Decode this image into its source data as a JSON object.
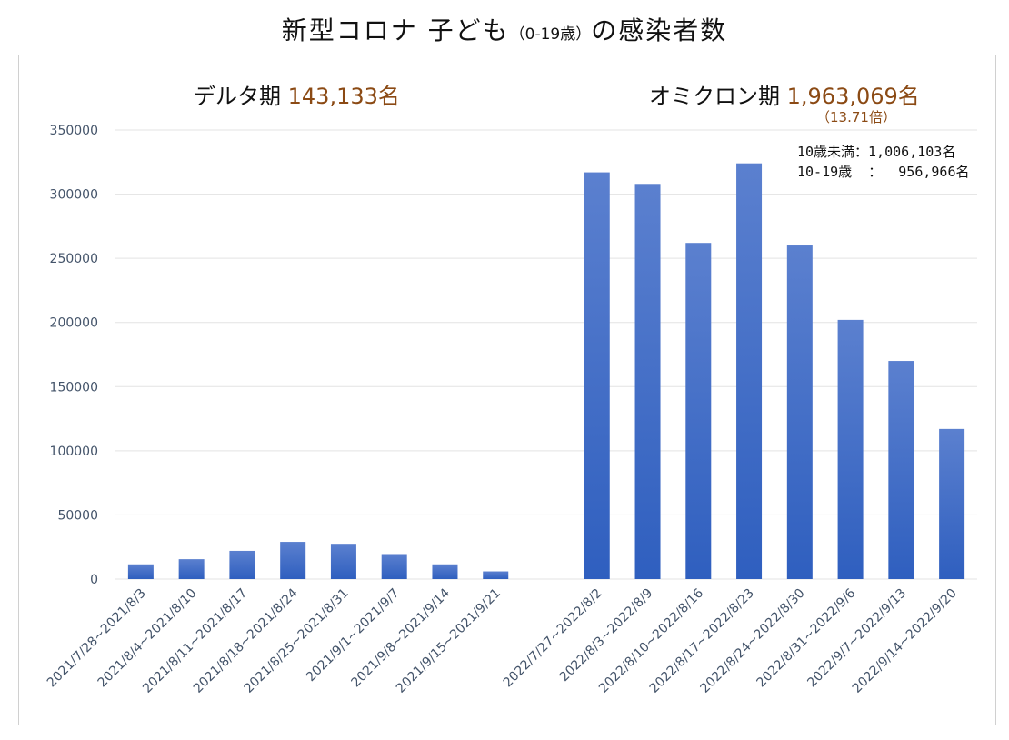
{
  "title": {
    "main": "新型コロナ 子ども",
    "sub": "（0-19歳）",
    "tail": "の感染者数"
  },
  "annotations": {
    "delta_label": "デルタ期 ",
    "delta_total": "143,133名",
    "omicron_label": "オミクロン期 ",
    "omicron_total": "1,963,069名",
    "omicron_ratio": "（13.71倍）",
    "under10_line": "10歳未満：1,006,103名",
    "age10_19_line": "10-19歳  ：  956,966名"
  },
  "colors": {
    "bar_top": "#5b80cf",
    "bar_bottom": "#2f5fbf",
    "grid": "#e3e3e3",
    "axis_text": "#44546a",
    "accent": "#8b4a14"
  },
  "chart_data": {
    "type": "bar",
    "categories": [
      "2021/7/28~2021/8/3",
      "2021/8/4~2021/8/10",
      "2021/8/11~2021/8/17",
      "2021/8/18~2021/8/24",
      "2021/8/25~2021/8/31",
      "2021/9/1~2021/9/7",
      "2021/9/8~2021/9/14",
      "2021/9/15~2021/9/21",
      "",
      "2022/7/27~2022/8/2",
      "2022/8/3~2022/8/9",
      "2022/8/10~2022/8/16",
      "2022/8/17~2022/8/23",
      "2022/8/24~2022/8/30",
      "2022/8/31~2022/9/6",
      "2022/9/7~2022/9/13",
      "2022/9/14~2022/9/20"
    ],
    "values": [
      11500,
      15500,
      22000,
      29000,
      27500,
      19500,
      11500,
      6000,
      null,
      317000,
      308000,
      262000,
      324000,
      260000,
      202000,
      170000,
      117000
    ],
    "ylim": [
      0,
      350000
    ],
    "yticks": [
      "0",
      "50000",
      "100000",
      "150000",
      "200000",
      "250000",
      "300000",
      "350000"
    ],
    "grid": true
  }
}
